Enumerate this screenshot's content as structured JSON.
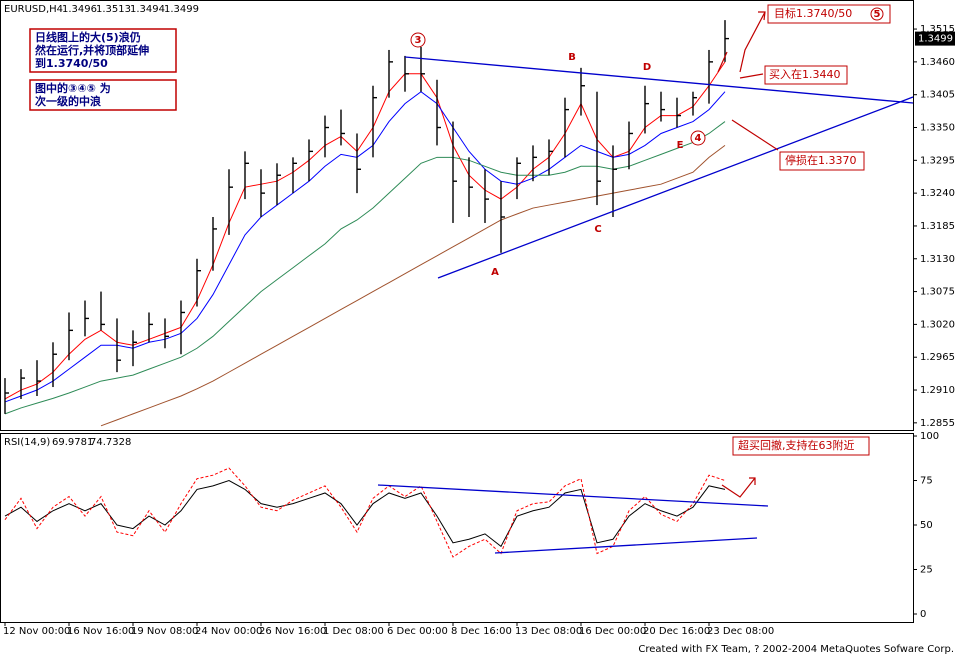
{
  "chart_data": [
    {
      "type": "hlc",
      "title": "EURUSD,H4",
      "quote": [
        1.3496,
        1.3513,
        1.3494,
        1.3499
      ],
      "last_price": 1.3499,
      "categories": [
        "12 Nov 00:00",
        null,
        null,
        null,
        "16 Nov 16:00",
        null,
        null,
        null,
        "19 Nov 08:00",
        null,
        null,
        null,
        "24 Nov 00:00",
        null,
        null,
        null,
        "26 Nov 16:00",
        null,
        null,
        null,
        "1 Dec 08:00",
        null,
        null,
        null,
        "6 Dec 00:00",
        null,
        null,
        null,
        "8 Dec 16:00",
        null,
        null,
        null,
        "13 Dec 08:00",
        null,
        null,
        null,
        "16 Dec 00:00",
        null,
        null,
        null,
        "20 Dec 16:00",
        null,
        null,
        null,
        "23 Dec 08:00",
        null
      ],
      "high": [
        1.293,
        1.2945,
        1.296,
        1.299,
        1.304,
        1.306,
        1.3075,
        1.303,
        1.301,
        1.304,
        1.303,
        1.306,
        1.313,
        1.32,
        1.328,
        1.331,
        1.328,
        1.329,
        1.33,
        1.333,
        1.337,
        1.338,
        1.334,
        1.342,
        1.348,
        1.347,
        1.3485,
        1.343,
        1.336,
        1.33,
        1.328,
        1.326,
        1.33,
        1.332,
        1.333,
        1.34,
        1.345,
        1.341,
        1.332,
        1.336,
        1.342,
        1.341,
        1.34,
        1.341,
        1.348,
        1.353
      ],
      "low": [
        1.287,
        1.2895,
        1.29,
        1.2915,
        1.296,
        1.3,
        1.301,
        1.294,
        1.295,
        1.299,
        1.298,
        1.297,
        1.305,
        1.311,
        1.317,
        1.323,
        1.32,
        1.322,
        1.324,
        1.326,
        1.33,
        1.332,
        1.324,
        1.33,
        1.34,
        1.341,
        1.341,
        1.332,
        1.319,
        1.32,
        1.319,
        1.314,
        1.323,
        1.326,
        1.327,
        1.33,
        1.337,
        1.322,
        1.32,
        1.328,
        1.334,
        1.336,
        1.335,
        1.337,
        1.339,
        1.346
      ],
      "close": [
        1.2905,
        1.293,
        1.2925,
        1.297,
        1.301,
        1.303,
        1.302,
        1.296,
        1.299,
        1.302,
        1.3,
        1.304,
        1.311,
        1.318,
        1.325,
        1.329,
        1.324,
        1.327,
        1.329,
        1.331,
        1.335,
        1.334,
        1.328,
        1.34,
        1.346,
        1.344,
        1.344,
        1.335,
        1.326,
        1.325,
        1.323,
        1.32,
        1.329,
        1.33,
        1.331,
        1.338,
        1.342,
        1.326,
        1.328,
        1.334,
        1.339,
        1.338,
        1.337,
        1.34,
        1.346,
        1.3499
      ],
      "bar_color": "#000000",
      "series": [
        {
          "color": "#ff0000",
          "values": [
            1.2895,
            1.291,
            1.292,
            1.294,
            1.297,
            1.2995,
            1.301,
            1.299,
            1.2985,
            1.2995,
            1.3005,
            1.3015,
            1.306,
            1.312,
            1.319,
            1.325,
            1.3255,
            1.326,
            1.3275,
            1.3295,
            1.332,
            1.3335,
            1.331,
            1.335,
            1.341,
            1.344,
            1.344,
            1.34,
            1.332,
            1.327,
            1.3245,
            1.323,
            1.325,
            1.328,
            1.33,
            1.334,
            1.339,
            1.333,
            1.33,
            1.331,
            1.335,
            1.337,
            1.337,
            1.3385,
            1.342,
            1.346
          ]
        },
        {
          "color": "#0000ff",
          "values": [
            1.289,
            1.29,
            1.291,
            1.2925,
            1.2945,
            1.2965,
            1.2985,
            1.2985,
            1.298,
            1.299,
            1.2995,
            1.3005,
            1.303,
            1.307,
            1.312,
            1.317,
            1.32,
            1.322,
            1.324,
            1.326,
            1.3285,
            1.3305,
            1.33,
            1.332,
            1.336,
            1.339,
            1.341,
            1.339,
            1.335,
            1.331,
            1.328,
            1.326,
            1.3255,
            1.3265,
            1.328,
            1.33,
            1.332,
            1.331,
            1.33,
            1.3305,
            1.332,
            1.334,
            1.335,
            1.336,
            1.338,
            1.341
          ]
        },
        {
          "color": "#2e8b57",
          "values": [
            1.287,
            1.288,
            1.2888,
            1.2896,
            1.2905,
            1.2915,
            1.2925,
            1.293,
            1.2935,
            1.2945,
            1.2955,
            1.2965,
            1.298,
            1.3,
            1.3025,
            1.305,
            1.3075,
            1.3095,
            1.3115,
            1.3135,
            1.3155,
            1.318,
            1.3195,
            1.3215,
            1.324,
            1.3265,
            1.329,
            1.33,
            1.33,
            1.3295,
            1.3285,
            1.3275,
            1.327,
            1.327,
            1.327,
            1.3275,
            1.3285,
            1.3285,
            1.328,
            1.3285,
            1.3295,
            1.3305,
            1.3315,
            1.3325,
            1.334,
            1.336
          ]
        },
        {
          "color": "#a0522d",
          "values": [
            null,
            null,
            null,
            null,
            null,
            null,
            1.285,
            1.286,
            1.287,
            1.288,
            1.289,
            1.29,
            1.2912,
            1.2925,
            1.294,
            1.2955,
            1.297,
            1.2985,
            1.3,
            1.3015,
            1.303,
            1.3045,
            1.306,
            1.3075,
            1.309,
            1.3105,
            1.312,
            1.3135,
            1.315,
            1.3165,
            1.318,
            1.3195,
            1.3205,
            1.3215,
            1.322,
            1.3225,
            1.323,
            1.3235,
            1.324,
            1.3245,
            1.325,
            1.3255,
            1.3265,
            1.3275,
            1.33,
            1.332
          ]
        }
      ],
      "ylim": [
        1.2843,
        1.3557
      ],
      "yticks": [
        1.3515,
        {
          "value": 1.346,
          "label": "1.3460"
        },
        1.3405,
        {
          "value": 1.335,
          "label": "1.3350"
        },
        1.3295,
        {
          "value": 1.324,
          "label": "1.3240"
        },
        1.3185,
        {
          "value": 1.313,
          "label": "1.3130"
        },
        1.3075,
        {
          "value": 1.302,
          "label": "1.3020"
        },
        1.2965,
        {
          "value": 1.291,
          "label": "1.2910"
        },
        1.2855
      ],
      "annotations": {
        "note1": [
          "日线图上的大(5)浪仍",
          "然在运行,并将顶部延伸",
          "到1.3740/50"
        ],
        "note2": [
          "图中的③④⑤ 为",
          "次一级的中浪"
        ],
        "target": "目标1.3740/50",
        "target_wave": "5",
        "buy": "买入在1.3440",
        "stop": "停损在1.3370",
        "waves": [
          "3",
          "A",
          "B",
          "C",
          "D",
          "E",
          "4"
        ]
      }
    },
    {
      "type": "line",
      "title": "RSI(14,9)",
      "readout": [
        69.9781,
        74.7328
      ],
      "series": [
        {
          "color": "#000000",
          "dash": false,
          "values": [
            55,
            60,
            52,
            58,
            62,
            58,
            62,
            50,
            48,
            55,
            50,
            58,
            70,
            72,
            75,
            70,
            62,
            60,
            62,
            65,
            68,
            62,
            50,
            62,
            68,
            65,
            68,
            55,
            40,
            42,
            45,
            38,
            55,
            58,
            60,
            68,
            70,
            40,
            42,
            55,
            62,
            58,
            55,
            60,
            72,
            70
          ]
        },
        {
          "color": "#ff0000",
          "dash": true,
          "values": [
            53,
            65,
            48,
            60,
            66,
            55,
            66,
            46,
            44,
            58,
            46,
            62,
            76,
            78,
            82,
            72,
            60,
            58,
            64,
            68,
            72,
            60,
            46,
            65,
            72,
            66,
            72,
            52,
            32,
            38,
            42,
            34,
            58,
            62,
            63,
            72,
            76,
            34,
            38,
            58,
            66,
            56,
            52,
            62,
            78,
            75
          ]
        }
      ],
      "ylim": [
        -4.5,
        101.7
      ],
      "yticks": [
        0,
        25,
        50,
        75,
        100
      ],
      "annotations": {
        "note": "超买回撤,支持在63附近"
      }
    }
  ],
  "footer": "Created with FX Team, ? 2002-2004 MetaQuotes Sofware Corp."
}
